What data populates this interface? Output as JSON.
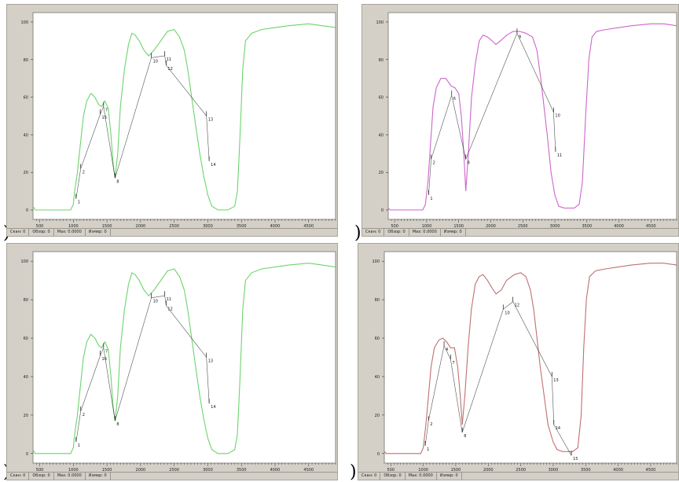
{
  "parens": [
    ")",
    ")",
    ")",
    ")"
  ],
  "chart_data": [
    {
      "type": "line",
      "color": "#6cd46c",
      "xlim": [
        400,
        4900
      ],
      "ylim": [
        -5,
        105
      ],
      "xticks": [
        500,
        1000,
        1500,
        2000,
        2500,
        3000,
        3500,
        4000,
        4500
      ],
      "yticks": [
        0,
        20,
        40,
        60,
        80,
        100
      ],
      "series": [
        {
          "values": [
            [
              400,
              2
            ],
            [
              430,
              0
            ],
            [
              960,
              0
            ],
            [
              1000,
              3
            ],
            [
              1020,
              10
            ],
            [
              1060,
              20
            ],
            [
              1090,
              30
            ],
            [
              1120,
              40
            ],
            [
              1150,
              50
            ],
            [
              1200,
              58
            ],
            [
              1260,
              62
            ],
            [
              1320,
              60
            ],
            [
              1380,
              56
            ],
            [
              1420,
              55
            ],
            [
              1470,
              58
            ],
            [
              1520,
              54
            ],
            [
              1560,
              40
            ],
            [
              1590,
              25
            ],
            [
              1620,
              17
            ],
            [
              1660,
              30
            ],
            [
              1700,
              55
            ],
            [
              1760,
              75
            ],
            [
              1820,
              88
            ],
            [
              1870,
              94
            ],
            [
              1920,
              93
            ],
            [
              1980,
              90
            ],
            [
              2050,
              85
            ],
            [
              2120,
              82
            ],
            [
              2200,
              85
            ],
            [
              2300,
              90
            ],
            [
              2400,
              95
            ],
            [
              2500,
              96
            ],
            [
              2580,
              92
            ],
            [
              2650,
              85
            ],
            [
              2700,
              75
            ],
            [
              2740,
              65
            ],
            [
              2780,
              55
            ],
            [
              2820,
              45
            ],
            [
              2880,
              30
            ],
            [
              2940,
              18
            ],
            [
              3000,
              8
            ],
            [
              3060,
              2
            ],
            [
              3150,
              0
            ],
            [
              3300,
              0
            ],
            [
              3400,
              2
            ],
            [
              3440,
              10
            ],
            [
              3480,
              40
            ],
            [
              3520,
              75
            ],
            [
              3560,
              90
            ],
            [
              3650,
              94
            ],
            [
              3800,
              96
            ],
            [
              4000,
              97
            ],
            [
              4200,
              98
            ],
            [
              4500,
              99
            ],
            [
              4700,
              98
            ],
            [
              4900,
              97
            ]
          ]
        }
      ],
      "annotations": [
        {
          "label": "1",
          "x": 1040,
          "y": 6
        },
        {
          "label": "2",
          "x": 1110,
          "y": 22
        },
        {
          "label": "15",
          "x": 1400,
          "y": 51
        },
        {
          "label": "7",
          "x": 1450,
          "y": 55
        },
        {
          "label": "8",
          "x": 1620,
          "y": 17
        },
        {
          "label": "10",
          "x": 2160,
          "y": 81
        },
        {
          "label": "11",
          "x": 2360,
          "y": 82
        },
        {
          "label": "12",
          "x": 2380,
          "y": 77
        },
        {
          "label": "13",
          "x": 2980,
          "y": 50
        },
        {
          "label": "14",
          "x": 3020,
          "y": 26
        }
      ],
      "status": [
        "Скан: 0",
        "Обзор: 0",
        "Мах: 0.0000",
        "Измер: 0"
      ]
    },
    {
      "type": "line",
      "color": "#cc66cc",
      "xlim": [
        400,
        4900
      ],
      "ylim": [
        -5,
        105
      ],
      "xticks": [
        500,
        1000,
        1500,
        2000,
        2500,
        3000,
        3500,
        4000,
        4500
      ],
      "yticks": [
        0,
        20,
        40,
        60,
        80,
        100
      ],
      "series": [
        {
          "values": [
            [
              400,
              1
            ],
            [
              430,
              0
            ],
            [
              940,
              0
            ],
            [
              980,
              3
            ],
            [
              1020,
              15
            ],
            [
              1060,
              35
            ],
            [
              1100,
              55
            ],
            [
              1150,
              65
            ],
            [
              1220,
              70
            ],
            [
              1300,
              70
            ],
            [
              1380,
              66
            ],
            [
              1440,
              65
            ],
            [
              1500,
              62
            ],
            [
              1540,
              50
            ],
            [
              1580,
              30
            ],
            [
              1610,
              10
            ],
            [
              1650,
              30
            ],
            [
              1700,
              60
            ],
            [
              1760,
              78
            ],
            [
              1820,
              90
            ],
            [
              1880,
              93
            ],
            [
              1950,
              92
            ],
            [
              2020,
              90
            ],
            [
              2080,
              88
            ],
            [
              2150,
              90
            ],
            [
              2250,
              93
            ],
            [
              2350,
              95
            ],
            [
              2450,
              95
            ],
            [
              2550,
              94
            ],
            [
              2650,
              92
            ],
            [
              2720,
              85
            ],
            [
              2780,
              70
            ],
            [
              2830,
              55
            ],
            [
              2880,
              40
            ],
            [
              2940,
              20
            ],
            [
              3000,
              8
            ],
            [
              3060,
              2
            ],
            [
              3150,
              1
            ],
            [
              3300,
              1
            ],
            [
              3380,
              3
            ],
            [
              3430,
              15
            ],
            [
              3480,
              50
            ],
            [
              3530,
              80
            ],
            [
              3580,
              92
            ],
            [
              3650,
              95
            ],
            [
              3800,
              96
            ],
            [
              4000,
              97
            ],
            [
              4200,
              98
            ],
            [
              4500,
              99
            ],
            [
              4700,
              99
            ],
            [
              4900,
              98
            ]
          ]
        }
      ],
      "annotations": [
        {
          "label": "1",
          "x": 1030,
          "y": 8
        },
        {
          "label": "2",
          "x": 1070,
          "y": 27
        },
        {
          "label": "6",
          "x": 1390,
          "y": 61
        },
        {
          "label": "8",
          "x": 1610,
          "y": 27
        },
        {
          "label": "9",
          "x": 2410,
          "y": 94
        },
        {
          "label": "10",
          "x": 2980,
          "y": 52
        },
        {
          "label": "11",
          "x": 3010,
          "y": 31
        }
      ],
      "status": [
        "Скан: 0",
        "Обзор: 0",
        "Мах: 0.0000",
        "Измер: 0"
      ]
    },
    {
      "type": "line",
      "color": "#6cd46c",
      "xlim": [
        400,
        4900
      ],
      "ylim": [
        -5,
        105
      ],
      "xticks": [
        500,
        1000,
        1500,
        2000,
        2500,
        3000,
        3500,
        4000,
        4500
      ],
      "yticks": [
        0,
        20,
        40,
        60,
        80,
        100
      ],
      "series": [
        {
          "values": [
            [
              400,
              2
            ],
            [
              430,
              0
            ],
            [
              960,
              0
            ],
            [
              1000,
              3
            ],
            [
              1020,
              10
            ],
            [
              1060,
              20
            ],
            [
              1090,
              30
            ],
            [
              1120,
              40
            ],
            [
              1150,
              50
            ],
            [
              1200,
              58
            ],
            [
              1260,
              62
            ],
            [
              1320,
              60
            ],
            [
              1380,
              56
            ],
            [
              1420,
              55
            ],
            [
              1470,
              58
            ],
            [
              1520,
              54
            ],
            [
              1560,
              40
            ],
            [
              1590,
              25
            ],
            [
              1620,
              17
            ],
            [
              1660,
              30
            ],
            [
              1700,
              55
            ],
            [
              1760,
              75
            ],
            [
              1820,
              88
            ],
            [
              1870,
              94
            ],
            [
              1920,
              93
            ],
            [
              1980,
              90
            ],
            [
              2050,
              85
            ],
            [
              2120,
              82
            ],
            [
              2200,
              85
            ],
            [
              2300,
              90
            ],
            [
              2400,
              95
            ],
            [
              2500,
              96
            ],
            [
              2580,
              92
            ],
            [
              2650,
              85
            ],
            [
              2700,
              75
            ],
            [
              2740,
              65
            ],
            [
              2780,
              55
            ],
            [
              2820,
              45
            ],
            [
              2880,
              30
            ],
            [
              2940,
              18
            ],
            [
              3000,
              8
            ],
            [
              3060,
              2
            ],
            [
              3150,
              0
            ],
            [
              3300,
              0
            ],
            [
              3400,
              2
            ],
            [
              3440,
              10
            ],
            [
              3480,
              40
            ],
            [
              3520,
              75
            ],
            [
              3560,
              90
            ],
            [
              3650,
              94
            ],
            [
              3800,
              96
            ],
            [
              4000,
              97
            ],
            [
              4200,
              98
            ],
            [
              4500,
              99
            ],
            [
              4700,
              98
            ],
            [
              4900,
              97
            ]
          ]
        }
      ],
      "annotations": [
        {
          "label": "1",
          "x": 1040,
          "y": 6
        },
        {
          "label": "2",
          "x": 1110,
          "y": 22
        },
        {
          "label": "16",
          "x": 1400,
          "y": 51
        },
        {
          "label": "7",
          "x": 1450,
          "y": 55
        },
        {
          "label": "8",
          "x": 1620,
          "y": 17
        },
        {
          "label": "10",
          "x": 2160,
          "y": 81
        },
        {
          "label": "11",
          "x": 2360,
          "y": 82
        },
        {
          "label": "12",
          "x": 2380,
          "y": 77
        },
        {
          "label": "13",
          "x": 2980,
          "y": 50
        },
        {
          "label": "14",
          "x": 3020,
          "y": 26
        }
      ],
      "status": [
        "Скан: 0",
        "Обзор: 0",
        "Мах: 0.0000",
        "Измер: 0"
      ]
    },
    {
      "type": "line",
      "color": "#c07070",
      "xlim": [
        400,
        4900
      ],
      "ylim": [
        -5,
        105
      ],
      "xticks": [
        500,
        1000,
        1500,
        2000,
        2500,
        3000,
        3500,
        4000,
        4500
      ],
      "yticks": [
        0,
        20,
        40,
        60,
        80,
        100
      ],
      "series": [
        {
          "values": [
            [
              400,
              1
            ],
            [
              430,
              0
            ],
            [
              960,
              0
            ],
            [
              1000,
              3
            ],
            [
              1040,
              15
            ],
            [
              1080,
              30
            ],
            [
              1120,
              45
            ],
            [
              1170,
              55
            ],
            [
              1240,
              59
            ],
            [
              1300,
              60
            ],
            [
              1360,
              58
            ],
            [
              1420,
              55
            ],
            [
              1480,
              55
            ],
            [
              1530,
              45
            ],
            [
              1570,
              30
            ],
            [
              1600,
              15
            ],
            [
              1640,
              30
            ],
            [
              1690,
              55
            ],
            [
              1740,
              75
            ],
            [
              1800,
              88
            ],
            [
              1860,
              92
            ],
            [
              1920,
              93
            ],
            [
              1990,
              90
            ],
            [
              2060,
              86
            ],
            [
              2120,
              83
            ],
            [
              2200,
              85
            ],
            [
              2280,
              90
            ],
            [
              2400,
              93
            ],
            [
              2500,
              94
            ],
            [
              2580,
              92
            ],
            [
              2650,
              85
            ],
            [
              2700,
              75
            ],
            [
              2750,
              60
            ],
            [
              2800,
              45
            ],
            [
              2860,
              30
            ],
            [
              2920,
              15
            ],
            [
              3000,
              6
            ],
            [
              3060,
              2
            ],
            [
              3150,
              1
            ],
            [
              3300,
              1
            ],
            [
              3380,
              3
            ],
            [
              3430,
              20
            ],
            [
              3470,
              55
            ],
            [
              3510,
              80
            ],
            [
              3560,
              92
            ],
            [
              3650,
              95
            ],
            [
              3800,
              96
            ],
            [
              4000,
              97
            ],
            [
              4200,
              98
            ],
            [
              4500,
              99
            ],
            [
              4700,
              99
            ],
            [
              4900,
              98
            ]
          ]
        }
      ],
      "annotations": [
        {
          "label": "1",
          "x": 1030,
          "y": 4
        },
        {
          "label": "2",
          "x": 1080,
          "y": 17
        },
        {
          "label": "4",
          "x": 1320,
          "y": 56
        },
        {
          "label": "7",
          "x": 1420,
          "y": 49
        },
        {
          "label": "8",
          "x": 1600,
          "y": 11
        },
        {
          "label": "10",
          "x": 2230,
          "y": 75
        },
        {
          "label": "12",
          "x": 2380,
          "y": 79
        },
        {
          "label": "13",
          "x": 2980,
          "y": 40
        },
        {
          "label": "14",
          "x": 3010,
          "y": 15
        },
        {
          "label": "15",
          "x": 3280,
          "y": -1
        }
      ],
      "status": [
        "Скан: 0",
        "Обзор: 0",
        "Мах: 0.0000",
        "Измер: 0"
      ]
    }
  ]
}
